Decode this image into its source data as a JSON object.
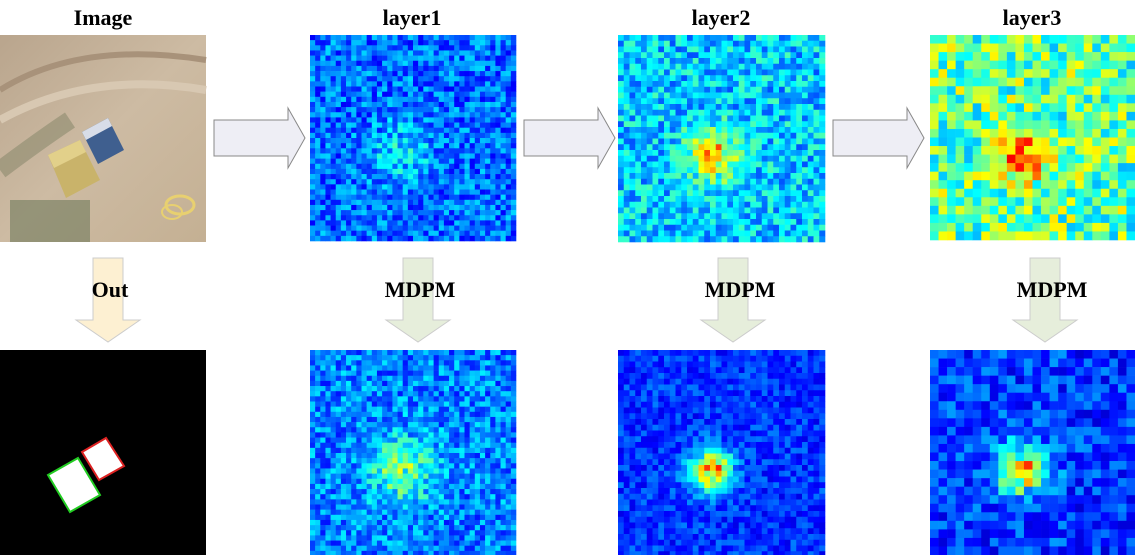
{
  "top_row": [
    {
      "title": "Image"
    },
    {
      "title": "layer1"
    },
    {
      "title": "layer2"
    },
    {
      "title": "layer3"
    }
  ],
  "arrow_labels": [
    "Out",
    "MDPM",
    "MDPM",
    "MDPM"
  ]
}
